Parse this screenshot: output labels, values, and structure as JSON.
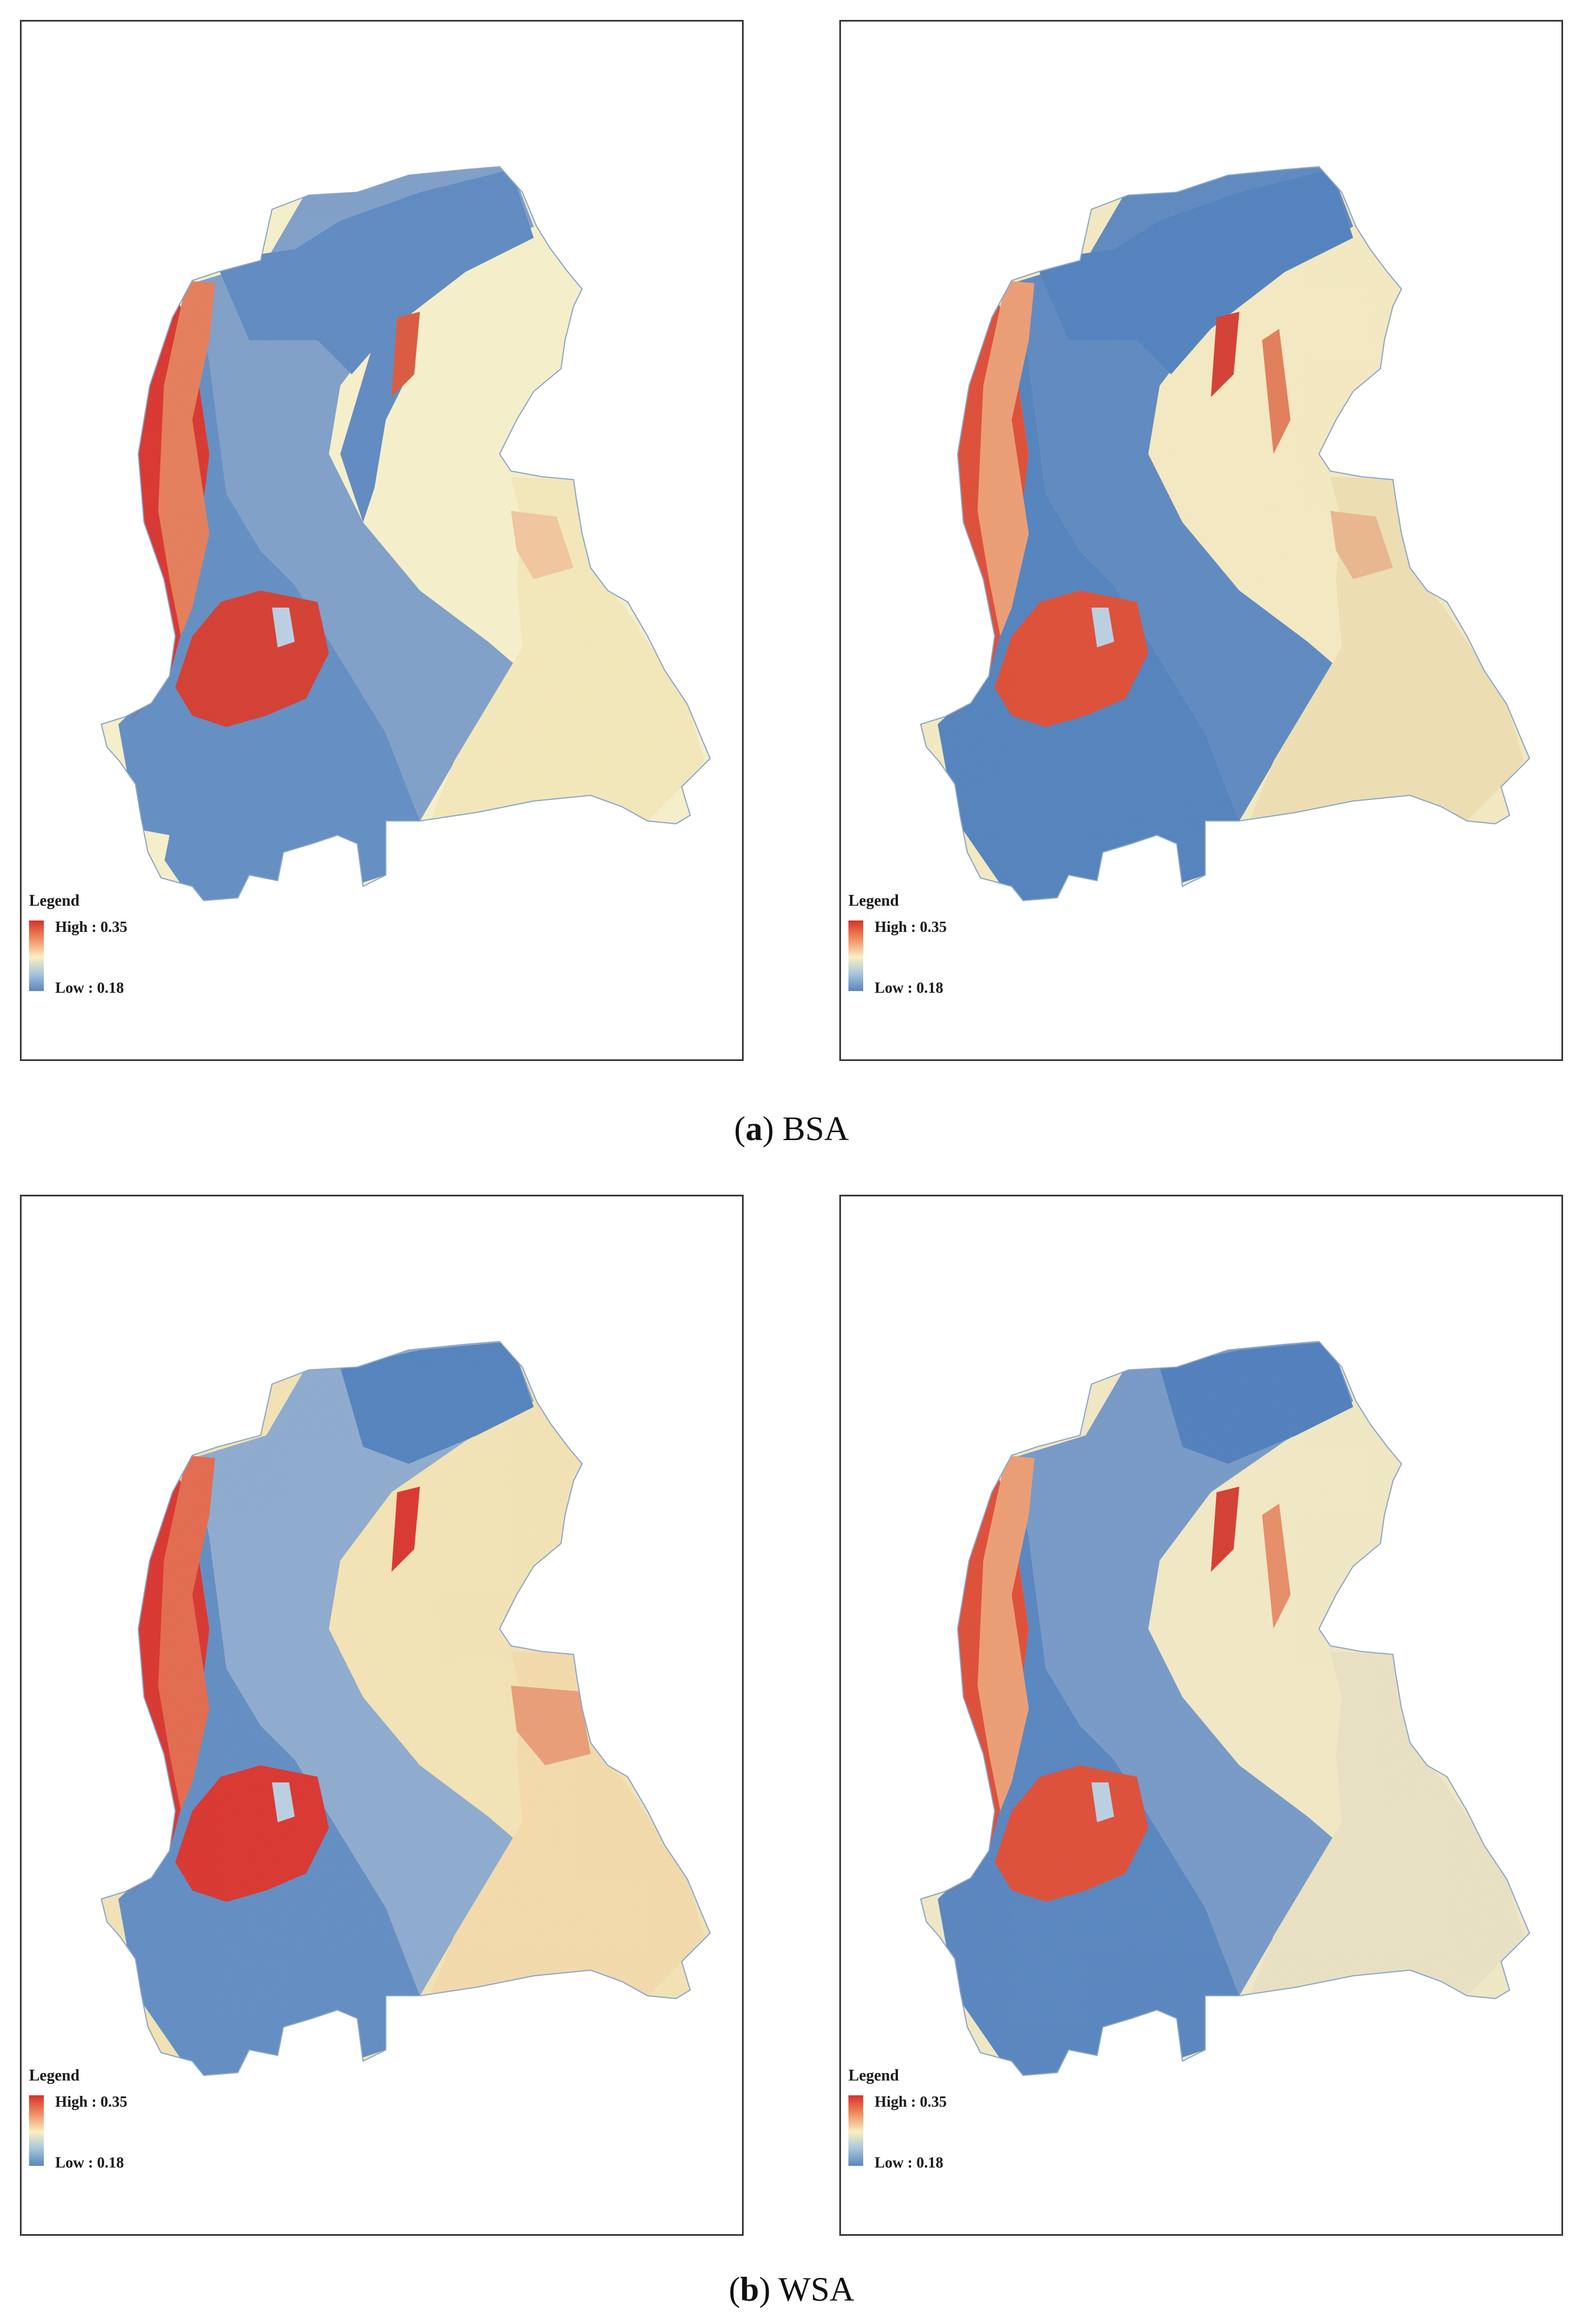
{
  "colors": {
    "high": "#d7312b",
    "mid": "#f9efc0",
    "low": "#5a86bd",
    "frame": "#3a3a3a"
  },
  "legend": {
    "title": "Legend",
    "high": "High : 0.35",
    "low": "Low : 0.18"
  },
  "figures": [
    {
      "letter": "a",
      "name": "BSA"
    },
    {
      "letter": "b",
      "name": "WSA"
    }
  ]
}
